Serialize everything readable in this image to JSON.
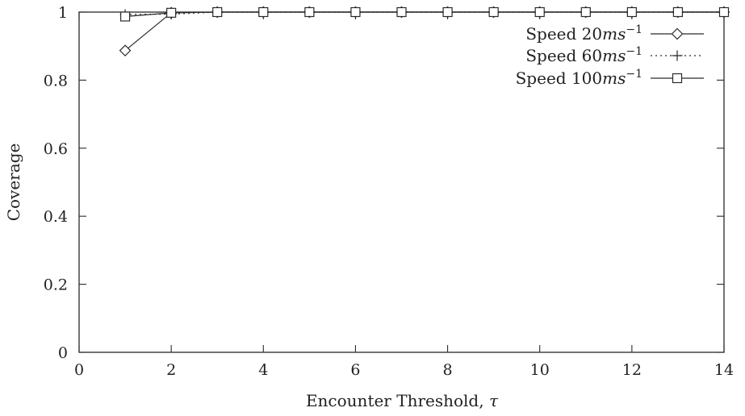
{
  "chart_data": {
    "type": "line",
    "xlabel": "Encounter Threshold, τ",
    "xlabel_parts": {
      "text": "Encounter Threshold, ",
      "symbol": "τ"
    },
    "ylabel": "Coverage",
    "xlim": [
      0,
      14
    ],
    "ylim": [
      0,
      1
    ],
    "xticks": [
      "0",
      "2",
      "4",
      "6",
      "8",
      "10",
      "12",
      "14"
    ],
    "yticks": [
      "0",
      "0.2",
      "0.4",
      "0.6",
      "0.8",
      "1"
    ],
    "x": [
      1,
      2,
      3,
      4,
      5,
      6,
      7,
      8,
      9,
      10,
      11,
      12,
      13,
      14
    ],
    "legend_position": "top-right",
    "grid": false,
    "series": [
      {
        "name": "Speed 20ms⁻¹",
        "name_parts": {
          "prefix": "Speed 20",
          "unit": "ms",
          "exp": "−1"
        },
        "marker": "diamond",
        "line": "solid",
        "values": [
          0.887,
          0.998,
          1,
          1,
          1,
          1,
          1,
          1,
          1,
          1,
          1,
          1,
          1,
          1
        ]
      },
      {
        "name": "Speed 60ms⁻¹",
        "name_parts": {
          "prefix": "Speed 60",
          "unit": "ms",
          "exp": "−1"
        },
        "marker": "plus",
        "line": "dotted",
        "values": [
          0.993,
          0.994,
          1,
          1,
          1,
          1,
          1,
          1,
          1,
          1,
          1,
          1,
          1,
          1
        ]
      },
      {
        "name": "Speed 100ms⁻¹",
        "name_parts": {
          "prefix": "Speed 100",
          "unit": "ms",
          "exp": "−1"
        },
        "marker": "square",
        "line": "solid",
        "values": [
          0.987,
          0.998,
          1,
          1,
          1,
          1,
          1,
          1,
          1,
          1,
          1,
          1,
          1,
          1
        ]
      }
    ]
  }
}
